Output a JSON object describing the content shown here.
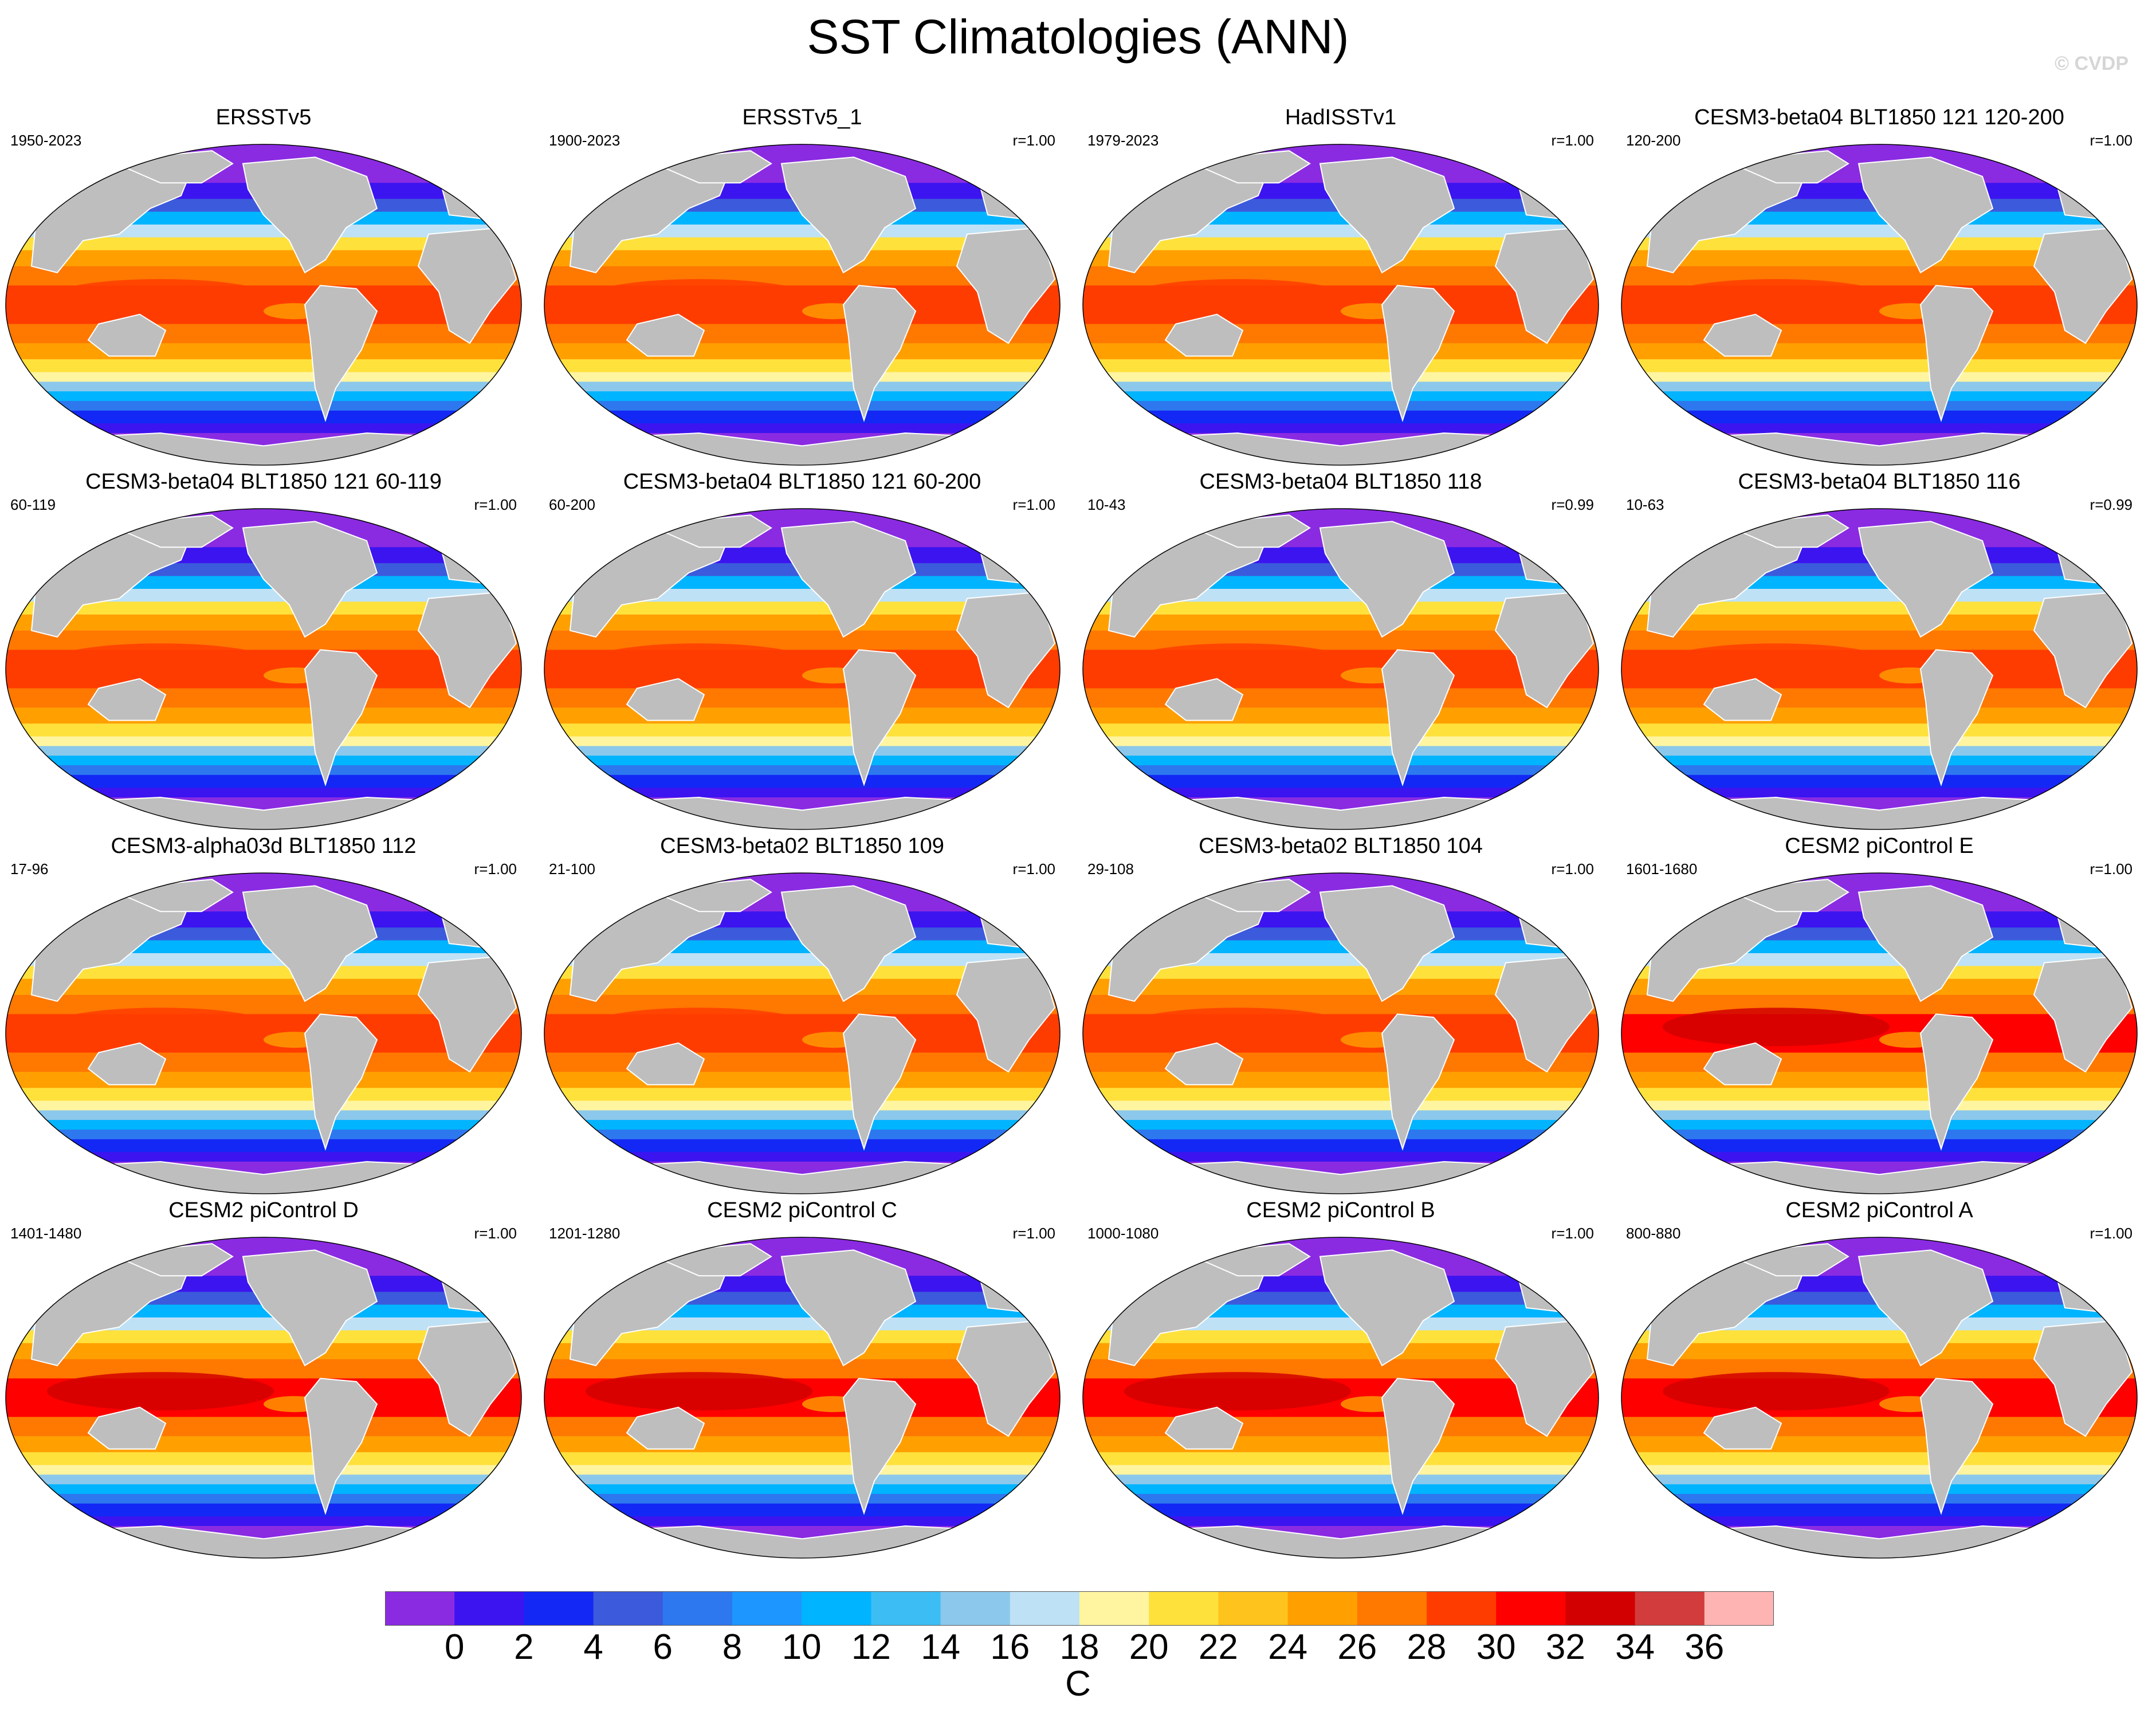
{
  "title": "SST Climatologies (ANN)",
  "watermark": "© CVDP",
  "panels": [
    {
      "title": "ERSSTv5",
      "period": "1950-2023",
      "corr": "",
      "variant": 0
    },
    {
      "title": "ERSSTv5_1",
      "period": "1900-2023",
      "corr": "r=1.00",
      "variant": 0
    },
    {
      "title": "HadISSTv1",
      "period": "1979-2023",
      "corr": "r=1.00",
      "variant": 1
    },
    {
      "title": "CESM3-beta04 BLT1850 121 120-200",
      "period": "120-200",
      "corr": "r=1.00",
      "variant": 2
    },
    {
      "title": "CESM3-beta04 BLT1850 121 60-119",
      "period": "60-119",
      "corr": "r=1.00",
      "variant": 2
    },
    {
      "title": "CESM3-beta04 BLT1850 121 60-200",
      "period": "60-200",
      "corr": "r=1.00",
      "variant": 2
    },
    {
      "title": "CESM3-beta04 BLT1850 118",
      "period": "10-43",
      "corr": "r=0.99",
      "variant": 2
    },
    {
      "title": "CESM3-beta04 BLT1850 116",
      "period": "10-63",
      "corr": "r=0.99",
      "variant": 2
    },
    {
      "title": "CESM3-alpha03d BLT1850 112",
      "period": "17-96",
      "corr": "r=1.00",
      "variant": 2
    },
    {
      "title": "CESM3-beta02 BLT1850 109",
      "period": "21-100",
      "corr": "r=1.00",
      "variant": 2
    },
    {
      "title": "CESM3-beta02 BLT1850 104",
      "period": "29-108",
      "corr": "r=1.00",
      "variant": 2
    },
    {
      "title": "CESM2 piControl E",
      "period": "1601-1680",
      "corr": "r=1.00",
      "variant": 3
    },
    {
      "title": "CESM2 piControl D",
      "period": "1401-1480",
      "corr": "r=1.00",
      "variant": 3
    },
    {
      "title": "CESM2 piControl C",
      "period": "1201-1280",
      "corr": "r=1.00",
      "variant": 3
    },
    {
      "title": "CESM2 piControl B",
      "period": "1000-1080",
      "corr": "r=1.00",
      "variant": 3
    },
    {
      "title": "CESM2 piControl A",
      "period": "800-880",
      "corr": "r=1.00",
      "variant": 3
    }
  ],
  "colorbar": {
    "colors": [
      "#8a2be2",
      "#3c14f0",
      "#1428f5",
      "#3c5adc",
      "#2d78ef",
      "#1e96ff",
      "#00b4ff",
      "#3cbef5",
      "#8cc8eb",
      "#bee1f5",
      "#fff5a0",
      "#ffe13c",
      "#ffc31e",
      "#ffa000",
      "#ff7800",
      "#ff3c00",
      "#ff0000",
      "#d20000",
      "#d23c3c",
      "#ffb4b4"
    ],
    "labels": [
      "0",
      "2",
      "4",
      "6",
      "8",
      "10",
      "12",
      "14",
      "16",
      "18",
      "20",
      "22",
      "24",
      "26",
      "28",
      "30",
      "32",
      "34",
      "36"
    ],
    "unit": "C"
  },
  "land_color": "#bebebe"
}
